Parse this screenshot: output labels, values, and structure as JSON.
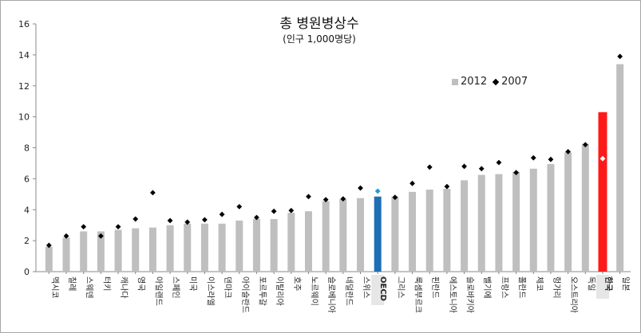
{
  "chart_data": {
    "type": "bar",
    "title": "총 병원병상수",
    "subtitle": "(인구 1,000명당)",
    "legend_position": "top-right",
    "ylim": [
      0,
      16
    ],
    "yticks": [
      0,
      2,
      4,
      6,
      8,
      10,
      12,
      14,
      16
    ],
    "categories": [
      "멕시코",
      "칠레",
      "스웨덴",
      "터키",
      "캐나다",
      "영국",
      "아일랜드",
      "스페인",
      "미국",
      "이스라엘",
      "덴마크",
      "아이슬란드",
      "포르투갈",
      "이탈리아",
      "호주",
      "노르웨이",
      "슬로베니아",
      "네덜란드",
      "스위스",
      "OECD",
      "그리스",
      "룩셈부르크",
      "핀란드",
      "에스토니아",
      "슬로바키아",
      "벨기에",
      "프랑스",
      "폴란드",
      "체코",
      "헝가리",
      "오스트리아",
      "독일",
      "한국",
      "일본"
    ],
    "series": [
      {
        "name": "2012",
        "type": "bar",
        "color": "#bfbfbf",
        "values": [
          1.6,
          2.2,
          2.6,
          2.6,
          2.7,
          2.8,
          2.85,
          3.0,
          3.1,
          3.1,
          3.1,
          3.3,
          3.4,
          3.4,
          3.8,
          3.9,
          4.55,
          4.7,
          4.75,
          4.85,
          4.85,
          5.15,
          5.3,
          5.35,
          5.9,
          6.25,
          6.3,
          6.45,
          6.65,
          6.95,
          7.7,
          8.25,
          10.3,
          13.4
        ]
      },
      {
        "name": "2007",
        "type": "marker",
        "color": "#000000",
        "values": [
          1.7,
          2.3,
          2.9,
          2.3,
          2.9,
          3.4,
          5.1,
          3.3,
          3.2,
          3.35,
          3.7,
          4.2,
          3.5,
          3.9,
          3.95,
          4.85,
          4.65,
          4.7,
          5.4,
          5.2,
          4.8,
          5.7,
          6.75,
          5.5,
          6.8,
          6.65,
          7.05,
          6.4,
          7.35,
          7.25,
          7.75,
          8.2,
          7.3,
          13.9
        ]
      }
    ],
    "highlight": {
      "OECD": {
        "bar_color": "#1f6fb4",
        "marker_color": "#1f9ad6"
      },
      "한국": {
        "bar_color": "#ff1a1a",
        "marker_color": "#ffffff"
      }
    }
  }
}
